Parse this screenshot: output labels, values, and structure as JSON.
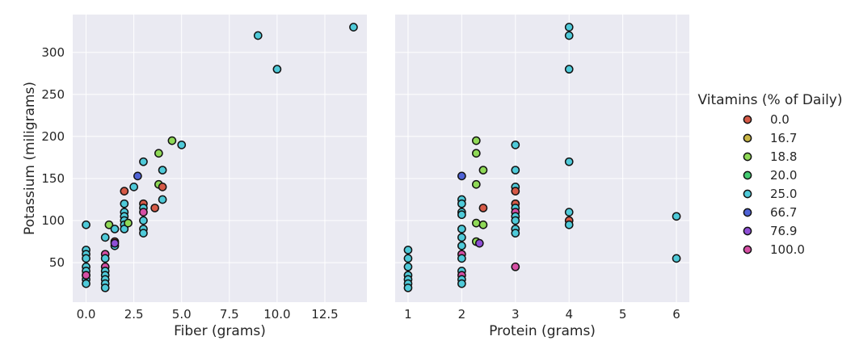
{
  "chart_data": {
    "type": "scatter",
    "y_label": "Potassium (miligrams)",
    "legend": {
      "title": "Vitamins (% of Daily)",
      "placement": "right",
      "entries": [
        {
          "label": "0.0",
          "color": "#d65a47"
        },
        {
          "label": "16.7",
          "color": "#c9b645"
        },
        {
          "label": "18.8",
          "color": "#8fd957"
        },
        {
          "label": "20.0",
          "color": "#44cc72"
        },
        {
          "label": "25.0",
          "color": "#4fcad9"
        },
        {
          "label": "66.7",
          "color": "#4f63d6"
        },
        {
          "label": "76.9",
          "color": "#8f4fd6"
        },
        {
          "label": "100.0",
          "color": "#d64fa5"
        }
      ]
    },
    "panels": [
      {
        "xlabel": "Fiber (grams)",
        "xlim": [
          -0.7,
          14.7
        ],
        "ylim": [
          3,
          345
        ],
        "xticks": [
          0.0,
          2.5,
          5.0,
          7.5,
          10.0,
          12.5
        ],
        "xtick_labels": [
          "0.0",
          "2.5",
          "5.0",
          "7.5",
          "10.0",
          "12.5"
        ],
        "yticks": [
          50,
          100,
          150,
          200,
          250,
          300
        ],
        "ytick_labels": [
          "50",
          "100",
          "150",
          "200",
          "250",
          "300"
        ],
        "points": [
          [
            0,
            95,
            "25.0"
          ],
          [
            0,
            65,
            "25.0"
          ],
          [
            0,
            60,
            "25.0"
          ],
          [
            0,
            55,
            "25.0"
          ],
          [
            0,
            45,
            "25.0"
          ],
          [
            0,
            40,
            "25.0"
          ],
          [
            0,
            35,
            "25.0"
          ],
          [
            0,
            30,
            "25.0"
          ],
          [
            0,
            25,
            "25.0"
          ],
          [
            0,
            35,
            "100.0"
          ],
          [
            1,
            60,
            "100.0"
          ],
          [
            1,
            55,
            "25.0"
          ],
          [
            1,
            45,
            "100.0"
          ],
          [
            1,
            40,
            "25.0"
          ],
          [
            1,
            35,
            "25.0"
          ],
          [
            1,
            30,
            "25.0"
          ],
          [
            1,
            25,
            "25.0"
          ],
          [
            1,
            20,
            "25.0"
          ],
          [
            1,
            80,
            "25.0"
          ],
          [
            1.2,
            95,
            "18.8"
          ],
          [
            1.5,
            90,
            "25.0"
          ],
          [
            1.5,
            75,
            "0.0"
          ],
          [
            1.5,
            70,
            "25.0"
          ],
          [
            1.5,
            73,
            "76.9"
          ],
          [
            2,
            135,
            "0.0"
          ],
          [
            2,
            120,
            "25.0"
          ],
          [
            2,
            110,
            "25.0"
          ],
          [
            2,
            105,
            "25.0"
          ],
          [
            2,
            100,
            "25.0"
          ],
          [
            2,
            95,
            "25.0"
          ],
          [
            2,
            90,
            "25.0"
          ],
          [
            2.2,
            97,
            "18.8"
          ],
          [
            2.5,
            140,
            "25.0"
          ],
          [
            2.7,
            153,
            "66.7"
          ],
          [
            3,
            170,
            "25.0"
          ],
          [
            3,
            120,
            "0.0"
          ],
          [
            3,
            115,
            "25.0"
          ],
          [
            3,
            110,
            "100.0"
          ],
          [
            3,
            100,
            "25.0"
          ],
          [
            3,
            90,
            "25.0"
          ],
          [
            3,
            85,
            "25.0"
          ],
          [
            3.6,
            115,
            "0.0"
          ],
          [
            3.8,
            180,
            "18.8"
          ],
          [
            3.8,
            143,
            "18.8"
          ],
          [
            4,
            160,
            "25.0"
          ],
          [
            4,
            140,
            "0.0"
          ],
          [
            4,
            125,
            "25.0"
          ],
          [
            4.5,
            195,
            "18.8"
          ],
          [
            5,
            190,
            "25.0"
          ],
          [
            9,
            320,
            "25.0"
          ],
          [
            10,
            280,
            "25.0"
          ],
          [
            14,
            330,
            "25.0"
          ]
        ]
      },
      {
        "xlabel": "Protein (grams)",
        "xlim": [
          0.76,
          6.24
        ],
        "ylim": [
          3,
          345
        ],
        "xticks": [
          1,
          2,
          3,
          4,
          5,
          6
        ],
        "xtick_labels": [
          "1",
          "2",
          "3",
          "4",
          "5",
          "6"
        ],
        "yticks": [
          50,
          100,
          150,
          200,
          250,
          300
        ],
        "ytick_labels": [
          "",
          "",
          "",
          "",
          "",
          ""
        ],
        "points": [
          [
            1,
            65,
            "25.0"
          ],
          [
            1,
            55,
            "25.0"
          ],
          [
            1,
            45,
            "25.0"
          ],
          [
            1,
            35,
            "25.0"
          ],
          [
            1,
            30,
            "25.0"
          ],
          [
            1,
            25,
            "25.0"
          ],
          [
            1,
            20,
            "25.0"
          ],
          [
            2,
            153,
            "66.7"
          ],
          [
            2,
            125,
            "25.0"
          ],
          [
            2,
            120,
            "25.0"
          ],
          [
            2,
            110,
            "25.0"
          ],
          [
            2,
            107,
            "25.0"
          ],
          [
            2,
            90,
            "25.0"
          ],
          [
            2,
            80,
            "25.0"
          ],
          [
            2,
            70,
            "25.0"
          ],
          [
            2,
            60,
            "100.0"
          ],
          [
            2,
            55,
            "25.0"
          ],
          [
            2,
            40,
            "25.0"
          ],
          [
            2,
            35,
            "100.0"
          ],
          [
            2,
            30,
            "25.0"
          ],
          [
            2,
            25,
            "25.0"
          ],
          [
            2.27,
            195,
            "18.8"
          ],
          [
            2.27,
            180,
            "18.8"
          ],
          [
            2.27,
            143,
            "18.8"
          ],
          [
            2.27,
            97,
            "18.8"
          ],
          [
            2.27,
            75,
            "18.8"
          ],
          [
            2.33,
            73,
            "76.9"
          ],
          [
            2.4,
            160,
            "18.8"
          ],
          [
            2.4,
            115,
            "0.0"
          ],
          [
            2.4,
            95,
            "18.8"
          ],
          [
            3,
            190,
            "25.0"
          ],
          [
            3,
            160,
            "25.0"
          ],
          [
            3,
            140,
            "25.0"
          ],
          [
            3,
            135,
            "0.0"
          ],
          [
            3,
            120,
            "0.0"
          ],
          [
            3,
            115,
            "25.0"
          ],
          [
            3,
            110,
            "100.0"
          ],
          [
            3,
            105,
            "25.0"
          ],
          [
            3,
            100,
            "25.0"
          ],
          [
            3,
            90,
            "25.0"
          ],
          [
            3,
            85,
            "25.0"
          ],
          [
            3,
            45,
            "100.0"
          ],
          [
            4,
            330,
            "25.0"
          ],
          [
            4,
            320,
            "25.0"
          ],
          [
            4,
            280,
            "25.0"
          ],
          [
            4,
            170,
            "25.0"
          ],
          [
            4,
            110,
            "25.0"
          ],
          [
            4,
            100,
            "0.0"
          ],
          [
            4,
            95,
            "25.0"
          ],
          [
            6,
            105,
            "25.0"
          ],
          [
            6,
            55,
            "25.0"
          ]
        ]
      }
    ]
  }
}
